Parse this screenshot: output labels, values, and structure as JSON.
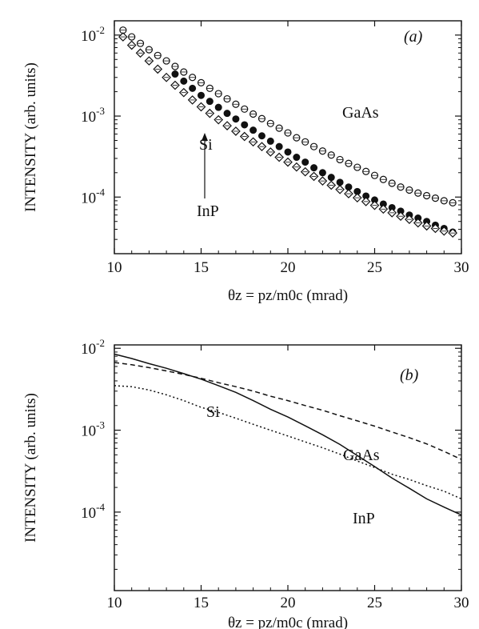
{
  "chart_data": [
    {
      "type": "scatter",
      "panel_label": "(a)",
      "xlabel": "θz = pz/m0c (mrad)",
      "ylabel": "INTENSITY (arb. units)",
      "xlim": [
        10,
        30
      ],
      "ylim": [
        2e-05,
        0.015
      ],
      "yscale": "log",
      "x_ticks": [
        10,
        15,
        20,
        25,
        30
      ],
      "y_ticks": [
        {
          "base": "10",
          "exp": "-2",
          "value": 0.01
        },
        {
          "base": "10",
          "exp": "-3",
          "value": 0.001
        },
        {
          "base": "10",
          "exp": "-4",
          "value": 0.0001
        }
      ],
      "series": [
        {
          "name": "GaAs",
          "marker": "open-circle",
          "x": [
            10.5,
            11.0,
            11.5,
            12.0,
            12.5,
            13.0,
            13.5,
            14.0,
            14.5,
            15.0,
            15.5,
            16.0,
            16.5,
            17.0,
            17.5,
            18.0,
            18.5,
            19.0,
            19.5,
            20.0,
            20.5,
            21.0,
            21.5,
            22.0,
            22.5,
            23.0,
            23.5,
            24.0,
            24.5,
            25.0,
            25.5,
            26.0,
            26.5,
            27.0,
            27.5,
            28.0,
            28.5,
            29.0,
            29.5
          ],
          "y": [
            0.0115,
            0.0095,
            0.0079,
            0.0066,
            0.0056,
            0.0048,
            0.0041,
            0.0035,
            0.003,
            0.00258,
            0.0022,
            0.00189,
            0.00163,
            0.0014,
            0.00122,
            0.00106,
            0.00093,
            0.00081,
            0.00071,
            0.00062,
            0.00054,
            0.00048,
            0.00042,
            0.00037,
            0.00033,
            0.00029,
            0.00026,
            0.000233,
            0.000207,
            0.000185,
            0.000165,
            0.000148,
            0.000133,
            0.000122,
            0.000112,
            0.000104,
            9.7e-05,
            9e-05,
            8.5e-05
          ]
        },
        {
          "name": "InP",
          "marker": "filled-circle",
          "x": [
            13.5,
            14.0,
            14.5,
            15.0,
            15.5,
            16.0,
            16.5,
            17.0,
            17.5,
            18.0,
            18.5,
            19.0,
            19.5,
            20.0,
            20.5,
            21.0,
            21.5,
            22.0,
            22.5,
            23.0,
            23.5,
            24.0,
            24.5,
            25.0,
            25.5,
            26.0,
            26.5,
            27.0,
            27.5,
            28.0,
            28.5,
            29.0,
            29.5
          ],
          "y": [
            0.0033,
            0.0027,
            0.0022,
            0.0018,
            0.00152,
            0.00128,
            0.00108,
            0.00092,
            0.00078,
            0.00067,
            0.00057,
            0.00049,
            0.00042,
            0.00036,
            0.00031,
            0.00027,
            0.00023,
            0.0002,
            0.000175,
            0.000152,
            0.000133,
            0.000117,
            0.000103,
            9.2e-05,
            8.2e-05,
            7.4e-05,
            6.7e-05,
            6e-05,
            5.5e-05,
            5e-05,
            4.5e-05,
            4.1e-05,
            3.7e-05
          ]
        },
        {
          "name": "Si",
          "marker": "open-diamond",
          "x": [
            10.5,
            11.0,
            11.5,
            12.0,
            12.5,
            13.0,
            13.5,
            14.0,
            14.5,
            15.0,
            15.5,
            16.0,
            16.5,
            17.0,
            17.5,
            18.0,
            18.5,
            19.0,
            19.5,
            20.0,
            20.5,
            21.0,
            21.5,
            22.0,
            22.5,
            23.0,
            23.5,
            24.0,
            24.5,
            25.0,
            25.5,
            26.0,
            26.5,
            27.0,
            27.5,
            28.0,
            28.5,
            29.0,
            29.5
          ],
          "y": [
            0.0095,
            0.0075,
            0.006,
            0.0048,
            0.0038,
            0.003,
            0.0024,
            0.00195,
            0.00158,
            0.0013,
            0.00108,
            0.0009,
            0.00076,
            0.00065,
            0.00056,
            0.00048,
            0.00042,
            0.00036,
            0.00031,
            0.00027,
            0.000235,
            0.000205,
            0.00018,
            0.000158,
            0.00014,
            0.000124,
            0.00011,
            9.8e-05,
            8.8e-05,
            7.9e-05,
            7.1e-05,
            6.4e-05,
            5.8e-05,
            5.3e-05,
            4.8e-05,
            4.4e-05,
            4.1e-05,
            3.8e-05,
            3.6e-05
          ]
        }
      ],
      "annotations": [
        "GaAs",
        "Si",
        "InP"
      ]
    },
    {
      "type": "line",
      "panel_label": "(b)",
      "xlabel": "θz = pz/m0c (mrad)",
      "ylabel": "INTENSITY (arb. units)",
      "xlim": [
        10,
        30
      ],
      "ylim": [
        1.1e-05,
        0.011
      ],
      "yscale": "log",
      "x_ticks": [
        10,
        15,
        20,
        25,
        30
      ],
      "y_ticks": [
        {
          "base": "10",
          "exp": "-2",
          "value": 0.01
        },
        {
          "base": "10",
          "exp": "-3",
          "value": 0.001
        },
        {
          "base": "10",
          "exp": "-4",
          "value": 0.0001
        }
      ],
      "series": [
        {
          "name": "InP",
          "style": "solid",
          "x": [
            10,
            11,
            12,
            13,
            14,
            15,
            16,
            17,
            18,
            19,
            20,
            21,
            22,
            23,
            24,
            25,
            26,
            27,
            28,
            29,
            30
          ],
          "y": [
            0.0085,
            0.0075,
            0.0065,
            0.0057,
            0.0049,
            0.0042,
            0.0035,
            0.0029,
            0.0023,
            0.0018,
            0.00145,
            0.00113,
            0.00088,
            0.00067,
            0.00049,
            0.00036,
            0.00026,
            0.000195,
            0.000145,
            0.000115,
            9.2e-05
          ]
        },
        {
          "name": "GaAs",
          "style": "dashed",
          "x": [
            10,
            11,
            12,
            13,
            14,
            15,
            16,
            17,
            18,
            19,
            20,
            21,
            22,
            23,
            24,
            25,
            26,
            27,
            28,
            29,
            30
          ],
          "y": [
            0.0067,
            0.0063,
            0.0058,
            0.0053,
            0.0048,
            0.0043,
            0.0038,
            0.0034,
            0.003,
            0.0026,
            0.0023,
            0.002,
            0.00175,
            0.0015,
            0.0013,
            0.00112,
            0.00095,
            0.00081,
            0.00068,
            0.00055,
            0.00044
          ]
        },
        {
          "name": "Si",
          "style": "dotted",
          "x": [
            10,
            11,
            12,
            13,
            14,
            15,
            16,
            17,
            18,
            19,
            20,
            21,
            22,
            23,
            24,
            25,
            26,
            27,
            28,
            29,
            30
          ],
          "y": [
            0.0035,
            0.0034,
            0.0031,
            0.0027,
            0.0023,
            0.0019,
            0.00165,
            0.0014,
            0.00118,
            0.001,
            0.00085,
            0.00072,
            0.00061,
            0.00051,
            0.00042,
            0.00035,
            0.00029,
            0.00025,
            0.00021,
            0.00018,
            0.000145
          ]
        }
      ],
      "annotations": [
        "Si",
        "GaAs",
        "InP"
      ]
    }
  ]
}
